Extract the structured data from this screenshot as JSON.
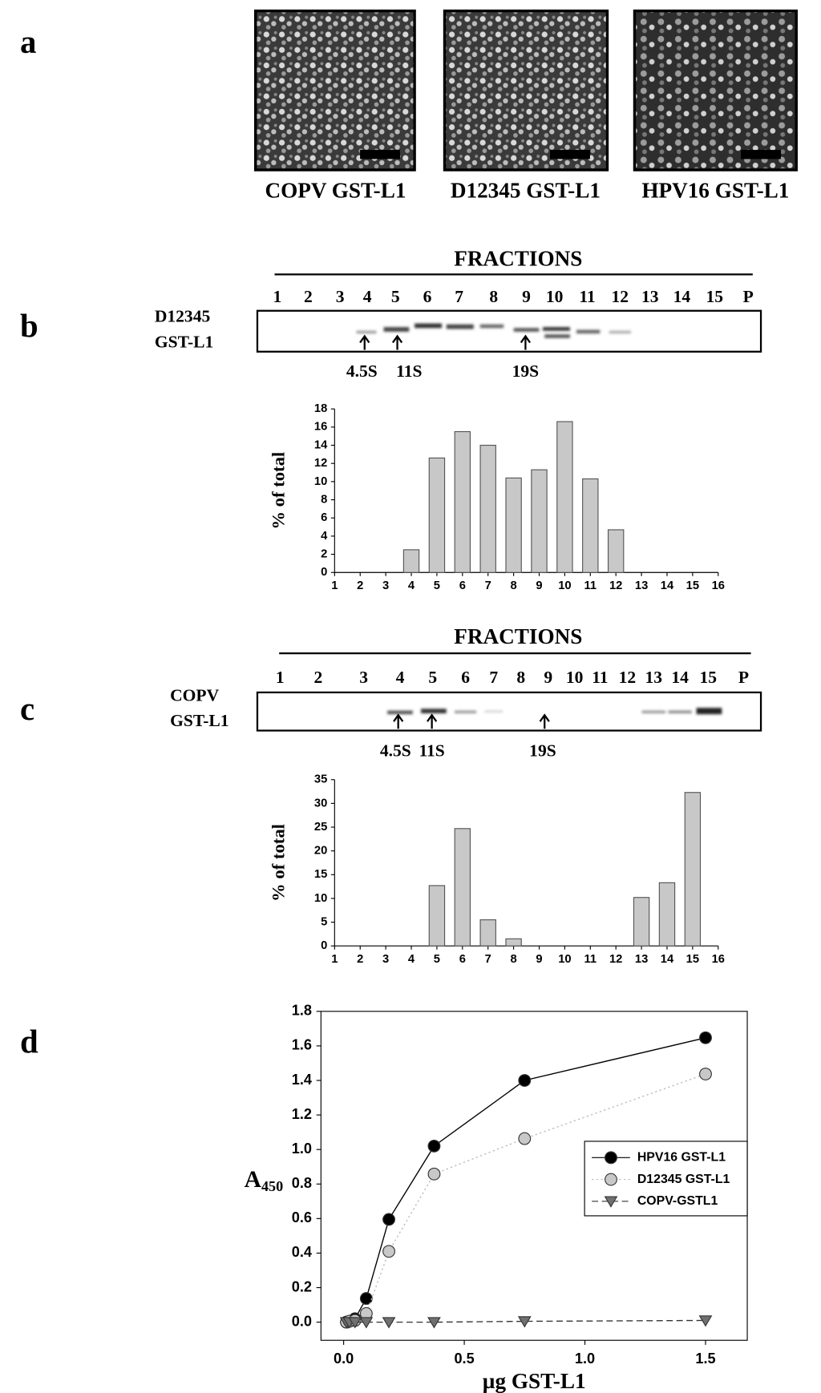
{
  "panel_labels": [
    "a",
    "b",
    "c",
    "d"
  ],
  "micrographs": [
    "COPV GST-L1",
    "D12345 GST-L1",
    "HPV16 GST-L1"
  ],
  "gels": [
    {
      "header": "FRACTIONS",
      "lanes": [
        "1",
        "2",
        "3",
        "4",
        "5",
        "6",
        "7",
        "8",
        "9",
        "10",
        "11",
        "12",
        "13",
        "14",
        "15",
        "P"
      ],
      "sample": [
        "D12345",
        "GST-L1"
      ],
      "markers": [
        "4.5S",
        "11S",
        "19S"
      ]
    },
    {
      "header": "FRACTIONS",
      "lanes": [
        "1",
        "2",
        "3",
        "4",
        "5",
        "6",
        "7",
        "8",
        "9",
        "10",
        "11",
        "12",
        "13",
        "14",
        "15",
        "P"
      ],
      "sample": [
        "COPV",
        "GST-L1"
      ],
      "markers": [
        "4.5S",
        "11S",
        "19S"
      ]
    }
  ],
  "chart_data": [
    {
      "type": "bar",
      "ylabel": "% of total",
      "color": "#c8c8c8",
      "categories": [
        "1",
        "2",
        "3",
        "4",
        "5",
        "6",
        "7",
        "8",
        "9",
        "10",
        "11",
        "12",
        "13",
        "14",
        "15",
        "16"
      ],
      "values": [
        0,
        0,
        0,
        2.5,
        12.6,
        15.5,
        14,
        10.4,
        11.3,
        16.6,
        10.3,
        4.7,
        0,
        0,
        0,
        0
      ],
      "ylim": [
        0,
        18
      ],
      "yticks": [
        0,
        2,
        4,
        6,
        8,
        10,
        12,
        14,
        16,
        18
      ]
    },
    {
      "type": "bar",
      "ylabel": "% of total",
      "color": "#c8c8c8",
      "categories": [
        "1",
        "2",
        "3",
        "4",
        "5",
        "6",
        "7",
        "8",
        "9",
        "10",
        "11",
        "12",
        "13",
        "14",
        "15",
        "16"
      ],
      "values": [
        0,
        0,
        0,
        0,
        12.7,
        24.7,
        5.5,
        1.5,
        0,
        0,
        0,
        0,
        10.2,
        13.3,
        32.3,
        0
      ],
      "ylim": [
        0,
        35
      ],
      "yticks": [
        0,
        5,
        10,
        15,
        20,
        25,
        30,
        35
      ]
    },
    {
      "type": "line",
      "ylabel": {
        "main": "A",
        "subscript": "450"
      },
      "xlabel": "µg GST-L1",
      "x": [
        0.0117,
        0.0234,
        0.0469,
        0.0938,
        0.1875,
        0.375,
        0.75,
        1.5
      ],
      "series": [
        {
          "name": "HPV16 GST-L1",
          "color": "#000000",
          "marker": "circle",
          "dash": "solid",
          "values": [
            0,
            0.005,
            0.02,
            0.137,
            0.595,
            1.02,
            1.4,
            1.647
          ]
        },
        {
          "name": "D12345 GST-L1",
          "color": "#c8c8c8",
          "marker": "circle",
          "dash": "dotted",
          "values": [
            0,
            0.005,
            0.01,
            0.05,
            0.41,
            0.858,
            1.063,
            1.437
          ]
        },
        {
          "name": "COPV-GSTL1",
          "color": "#707070",
          "marker": "triangle",
          "dash": "dashed",
          "values": [
            0,
            0,
            0,
            0,
            0,
            0,
            0.005,
            0.01
          ]
        }
      ],
      "xlim": [
        -0.094,
        1.673
      ],
      "xticks": [
        {
          "value": 0,
          "label": "0.0"
        },
        0.5,
        {
          "value": 1,
          "label": "1.0"
        },
        1.5
      ],
      "ylim": [
        -0.105,
        1.8
      ],
      "yticks": [
        {
          "value": 0,
          "label": "0.0"
        },
        0.2,
        0.4,
        0.6,
        0.8,
        {
          "value": 1,
          "label": "1.0"
        },
        1.2,
        1.4,
        1.6,
        1.8
      ],
      "legend": "upper right"
    }
  ]
}
